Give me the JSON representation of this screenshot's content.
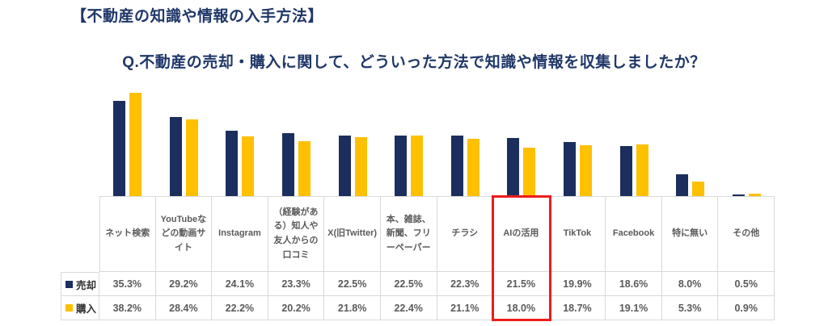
{
  "page": {
    "title": "【不動産の知識や情報の入手方法】",
    "question": "Q.不動産の売却・購入に関して、どういった方法で知識や情報を収集しましたか？"
  },
  "colors": {
    "navy": "#1b2e5e",
    "gold": "#ffc000",
    "title_navy": "#1f3768",
    "table_border": "#d9d9d9",
    "table_text": "#5a5a5a",
    "highlight_red": "#ee1c1c"
  },
  "chart_data": {
    "type": "bar",
    "categories": [
      "ネット検索",
      "YouTubeなどの動画サイト",
      "Instagram",
      "（経験がある）知人や友人からの口コミ",
      "X(旧Twitter)",
      "本、雑誌、新聞、フリーペーパー",
      "チラシ",
      "AIの活用",
      "TikTok",
      "Facebook",
      "特に無い",
      "その他"
    ],
    "series": [
      {
        "name": "売却",
        "values": [
          35.3,
          29.2,
          24.1,
          23.3,
          22.5,
          22.5,
          22.3,
          21.5,
          19.9,
          18.6,
          8.0,
          0.5
        ]
      },
      {
        "name": "購入",
        "values": [
          38.2,
          28.4,
          22.2,
          20.2,
          21.8,
          22.4,
          21.1,
          18.0,
          18.7,
          19.1,
          5.3,
          0.9
        ]
      }
    ],
    "value_suffix": "%",
    "highlighted_category": "AIの活用",
    "ylim": [
      0,
      40
    ],
    "grid": false,
    "legend_position": "table-left-column"
  }
}
